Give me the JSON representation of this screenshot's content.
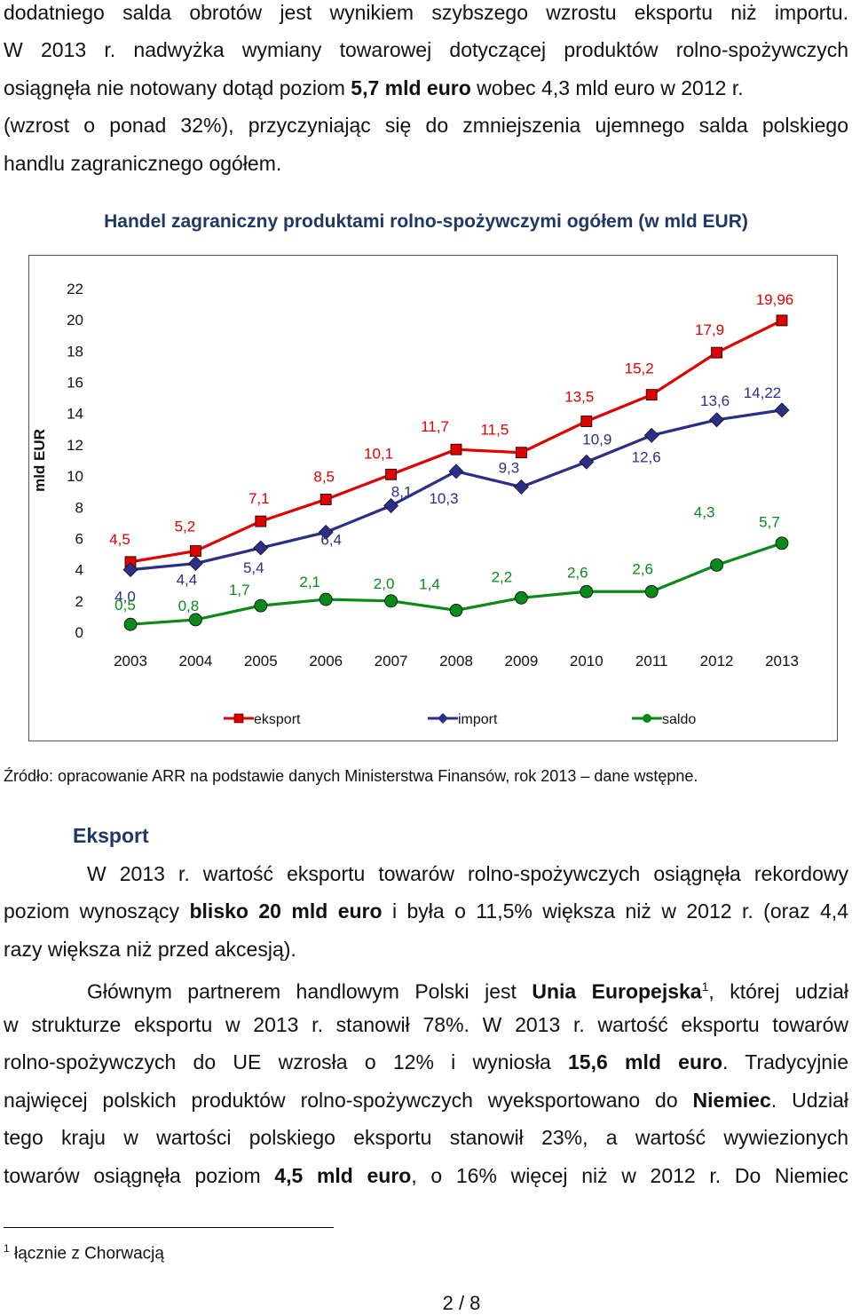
{
  "intro": {
    "l1": "dodatniego salda obrotów jest wynikiem szybszego wzrostu eksportu niż importu.",
    "l2": "W 2013 r. nadwyżka wymiany towarowej dotyczącej produktów rolno-spożywczych",
    "l3_a": "osiągnęła nie notowany dotąd poziom ",
    "l3_b": "5,7 mld euro",
    "l3_c": " wobec 4,3 mld euro w 2012 r.",
    "l4": "(wzrost o ponad 32%), przyczyniając się do zmniejszenia ujemnego salda polskiego",
    "l5": "handlu zagranicznego ogółem."
  },
  "chart_data": {
    "type": "line",
    "title": "Handel zagraniczny produktami rolno-spożywczymi ogółem (w mld EUR)",
    "ylabel": "mld EUR",
    "xlabel": "",
    "ylim": [
      0,
      22
    ],
    "yticks": [
      0,
      2,
      4,
      6,
      8,
      10,
      12,
      14,
      16,
      18,
      20,
      22
    ],
    "categories": [
      "2003",
      "2004",
      "2005",
      "2006",
      "2007",
      "2008",
      "2009",
      "2010",
      "2011",
      "2012",
      "2013"
    ],
    "legend_position": "bottom",
    "series": [
      {
        "name": "eksport",
        "color": "#e00000",
        "marker": "square",
        "values": [
          4.5,
          5.2,
          7.1,
          8.5,
          10.1,
          11.7,
          11.5,
          13.5,
          15.2,
          17.9,
          19.96
        ],
        "labels": [
          "4,5",
          "5,2",
          "7,1",
          "8,5",
          "10,1",
          "11,7",
          "11,5",
          "13,5",
          "15,2",
          "17,9",
          "19,96"
        ]
      },
      {
        "name": "import",
        "color": "#2b2f87",
        "marker": "diamond",
        "values": [
          4.0,
          4.4,
          5.4,
          6.4,
          8.1,
          10.3,
          9.3,
          10.9,
          12.6,
          13.6,
          14.22
        ],
        "labels": [
          "4,0",
          "4,4",
          "5,4",
          "6,4",
          "8,1",
          "10,3",
          "9,3",
          "10,9",
          "12,6",
          "13,6",
          "14,22"
        ]
      },
      {
        "name": "saldo",
        "color": "#0a8a1a",
        "marker": "circle",
        "values": [
          0.5,
          0.8,
          1.7,
          2.1,
          2.0,
          1.4,
          2.2,
          2.6,
          2.6,
          4.3,
          5.7
        ],
        "labels": [
          "0,5",
          "0,8",
          "1,7",
          "2,1",
          "2,0",
          "1,4",
          "2,2",
          "2,6",
          "2,6",
          "4,3",
          "5,7"
        ]
      }
    ]
  },
  "source": "Źródło: opracowanie ARR na podstawie danych Ministerstwa Finansów, rok 2013 – dane wstępne.",
  "export_section": {
    "heading": "Eksport",
    "p1_l1": "W 2013 r. wartość eksportu towarów rolno-spożywczych osiągnęła rekordowy",
    "p1_l2_a": "poziom wynoszący ",
    "p1_l2_b": "blisko 20 mld euro",
    "p1_l2_c": " i była o 11,5% większa niż w 2012 r. (oraz 4,4",
    "p1_l3": "razy większa niż przed akcesją).",
    "p2_l1_a": "Głównym partnerem handlowym Polski jest ",
    "p2_l1_b": "Unia Europejska",
    "p2_l1_sup": "1",
    "p2_l1_c": ", której udział",
    "p2_l2": "w strukturze eksportu w 2013 r. stanowił 78%. W 2013 r. wartość eksportu towarów",
    "p2_l3_a": "rolno-spożywczych do UE wzrosła o 12% i wyniosła ",
    "p2_l3_b": "15,6 mld euro",
    "p2_l3_c": ". Tradycyjnie",
    "p2_l4_a": "najwięcej polskich produktów rolno-spożywczych wyeksportowano do ",
    "p2_l4_b": "Niemiec",
    "p2_l4_c": ". Udział",
    "p2_l5": "tego kraju w wartości polskiego eksportu stanowił 23%, a wartość wywiezionych",
    "p2_l6_a": "towarów osiągnęła poziom ",
    "p2_l6_b": "4,5 mld euro",
    "p2_l6_c": ", o 16% więcej niż w 2012 r. Do Niemiec"
  },
  "footnote": {
    "number": "1",
    "text": " łącznie z Chorwacją"
  },
  "page_number": "2 / 8"
}
